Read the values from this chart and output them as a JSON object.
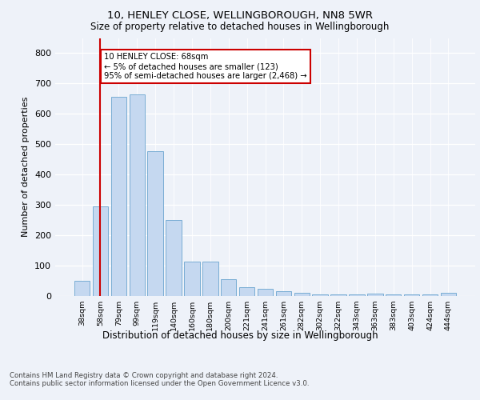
{
  "title_line1": "10, HENLEY CLOSE, WELLINGBOROUGH, NN8 5WR",
  "title_line2": "Size of property relative to detached houses in Wellingborough",
  "xlabel": "Distribution of detached houses by size in Wellingborough",
  "ylabel": "Number of detached properties",
  "categories": [
    "38sqm",
    "58sqm",
    "79sqm",
    "99sqm",
    "119sqm",
    "140sqm",
    "160sqm",
    "180sqm",
    "200sqm",
    "221sqm",
    "241sqm",
    "261sqm",
    "282sqm",
    "302sqm",
    "322sqm",
    "343sqm",
    "363sqm",
    "383sqm",
    "403sqm",
    "424sqm",
    "444sqm"
  ],
  "values": [
    50,
    295,
    655,
    663,
    478,
    250,
    113,
    113,
    55,
    30,
    25,
    15,
    10,
    5,
    5,
    5,
    8,
    5,
    5,
    5,
    10
  ],
  "bar_color": "#c5d8f0",
  "bar_edge_color": "#7aadd4",
  "vline_x": 1.0,
  "vline_color": "#cc0000",
  "annotation_text": "10 HENLEY CLOSE: 68sqm\n← 5% of detached houses are smaller (123)\n95% of semi-detached houses are larger (2,468) →",
  "annotation_box_color": "#ffffff",
  "annotation_box_edge_color": "#cc0000",
  "ylim": [
    0,
    850
  ],
  "yticks": [
    0,
    100,
    200,
    300,
    400,
    500,
    600,
    700,
    800
  ],
  "footer_line1": "Contains HM Land Registry data © Crown copyright and database right 2024.",
  "footer_line2": "Contains public sector information licensed under the Open Government Licence v3.0.",
  "bg_color": "#eef2f9",
  "plot_bg_color": "#eef2f9"
}
